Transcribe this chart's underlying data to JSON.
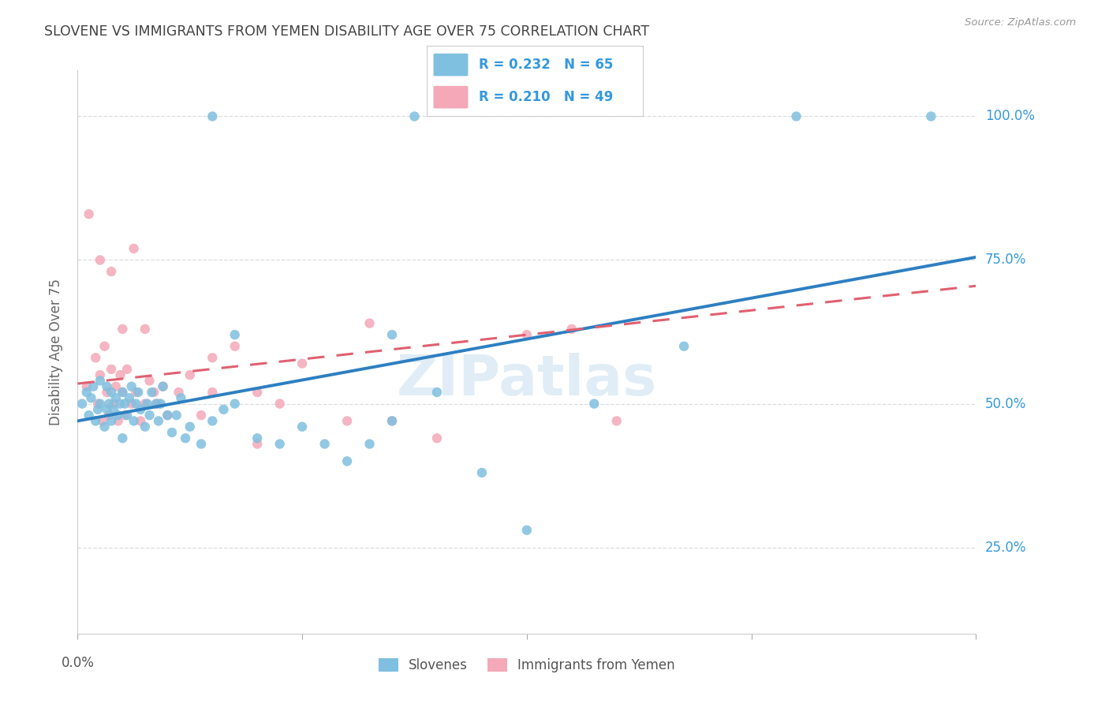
{
  "title": "SLOVENE VS IMMIGRANTS FROM YEMEN DISABILITY AGE OVER 75 CORRELATION CHART",
  "source": "Source: ZipAtlas.com",
  "ylabel": "Disability Age Over 75",
  "ytick_labels": [
    "25.0%",
    "50.0%",
    "75.0%",
    "100.0%"
  ],
  "legend_label1": "Slovenes",
  "legend_label2": "Immigrants from Yemen",
  "r1": "0.232",
  "n1": "65",
  "r2": "0.210",
  "n2": "49",
  "color_blue": "#7fbfdf",
  "color_pink": "#f4a8b8",
  "color_blue_line": "#2d7fc1",
  "color_pink_line": "#e06070",
  "title_color": "#444444",
  "source_color": "#999999",
  "background_color": "#ffffff",
  "grid_color": "#dddddd",
  "x_min": 0.0,
  "x_max": 0.4,
  "y_min": 0.1,
  "y_max": 1.08,
  "blue_line_x0": 0.0,
  "blue_line_y0": 0.47,
  "blue_line_x1": 0.4,
  "blue_line_y1": 0.755,
  "pink_line_x0": 0.0,
  "pink_line_y0": 0.535,
  "pink_line_x1": 0.4,
  "pink_line_y1": 0.705,
  "slovene_x": [
    0.002,
    0.004,
    0.005,
    0.006,
    0.007,
    0.008,
    0.009,
    0.01,
    0.01,
    0.012,
    0.013,
    0.013,
    0.014,
    0.015,
    0.015,
    0.016,
    0.017,
    0.018,
    0.019,
    0.02,
    0.02,
    0.021,
    0.022,
    0.023,
    0.024,
    0.025,
    0.026,
    0.027,
    0.028,
    0.03,
    0.031,
    0.032,
    0.033,
    0.035,
    0.036,
    0.037,
    0.038,
    0.04,
    0.042,
    0.044,
    0.046,
    0.048,
    0.05,
    0.055,
    0.06,
    0.065,
    0.07,
    0.08,
    0.09,
    0.1,
    0.11,
    0.12,
    0.13,
    0.14,
    0.16,
    0.18,
    0.2,
    0.23,
    0.27,
    0.07,
    0.14,
    0.15,
    0.32,
    0.06,
    0.38
  ],
  "slovene_y": [
    0.5,
    0.52,
    0.48,
    0.51,
    0.53,
    0.47,
    0.49,
    0.5,
    0.54,
    0.46,
    0.49,
    0.53,
    0.5,
    0.47,
    0.52,
    0.49,
    0.51,
    0.48,
    0.5,
    0.44,
    0.52,
    0.5,
    0.48,
    0.51,
    0.53,
    0.47,
    0.5,
    0.52,
    0.49,
    0.46,
    0.5,
    0.48,
    0.52,
    0.5,
    0.47,
    0.5,
    0.53,
    0.48,
    0.45,
    0.48,
    0.51,
    0.44,
    0.46,
    0.43,
    0.47,
    0.49,
    0.5,
    0.44,
    0.43,
    0.46,
    0.43,
    0.4,
    0.43,
    0.47,
    0.52,
    0.38,
    0.28,
    0.5,
    0.6,
    0.62,
    0.62,
    1.0,
    1.0,
    1.0,
    1.0
  ],
  "yemen_x": [
    0.004,
    0.008,
    0.009,
    0.01,
    0.011,
    0.012,
    0.013,
    0.014,
    0.015,
    0.016,
    0.017,
    0.018,
    0.019,
    0.02,
    0.021,
    0.022,
    0.024,
    0.026,
    0.028,
    0.03,
    0.032,
    0.034,
    0.036,
    0.038,
    0.04,
    0.045,
    0.05,
    0.055,
    0.06,
    0.07,
    0.08,
    0.09,
    0.1,
    0.12,
    0.14,
    0.16,
    0.2,
    0.22,
    0.24,
    0.005,
    0.01,
    0.015,
    0.02,
    0.025,
    0.03,
    0.035,
    0.06,
    0.08,
    0.13
  ],
  "yemen_y": [
    0.53,
    0.58,
    0.5,
    0.55,
    0.47,
    0.6,
    0.52,
    0.48,
    0.56,
    0.5,
    0.53,
    0.47,
    0.55,
    0.52,
    0.48,
    0.56,
    0.5,
    0.52,
    0.47,
    0.5,
    0.54,
    0.52,
    0.5,
    0.53,
    0.48,
    0.52,
    0.55,
    0.48,
    0.52,
    0.6,
    0.52,
    0.5,
    0.57,
    0.47,
    0.47,
    0.44,
    0.62,
    0.63,
    0.47,
    0.83,
    0.75,
    0.73,
    0.63,
    0.77,
    0.63,
    0.5,
    0.58,
    0.43,
    0.64
  ]
}
